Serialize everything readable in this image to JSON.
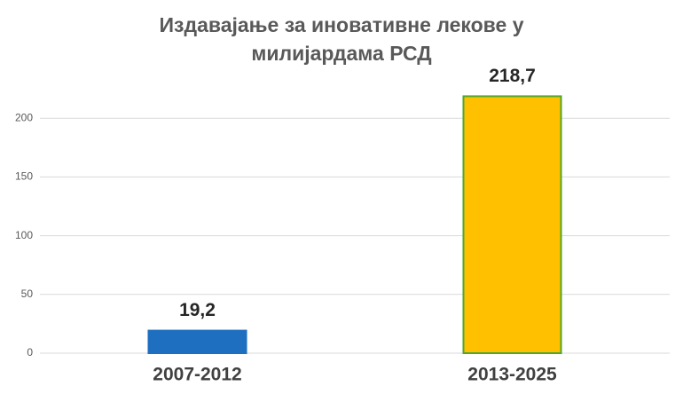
{
  "chart_data": {
    "type": "bar",
    "title": [
      "Издавајање за иновативне лекове у",
      "милијардама РСД"
    ],
    "categories": [
      "2007-2012",
      "2013-2025"
    ],
    "values": [
      19.2,
      218.7
    ],
    "value_labels": [
      "19,2",
      "218,7"
    ],
    "colors": [
      "#1f6fc0",
      "#ffc000"
    ],
    "edgecolors": [
      "#1f6fc0",
      "#4ea72e"
    ],
    "ylim": [
      0,
      250
    ],
    "yticks": [
      0,
      50,
      100,
      150,
      200
    ],
    "grid": true
  }
}
